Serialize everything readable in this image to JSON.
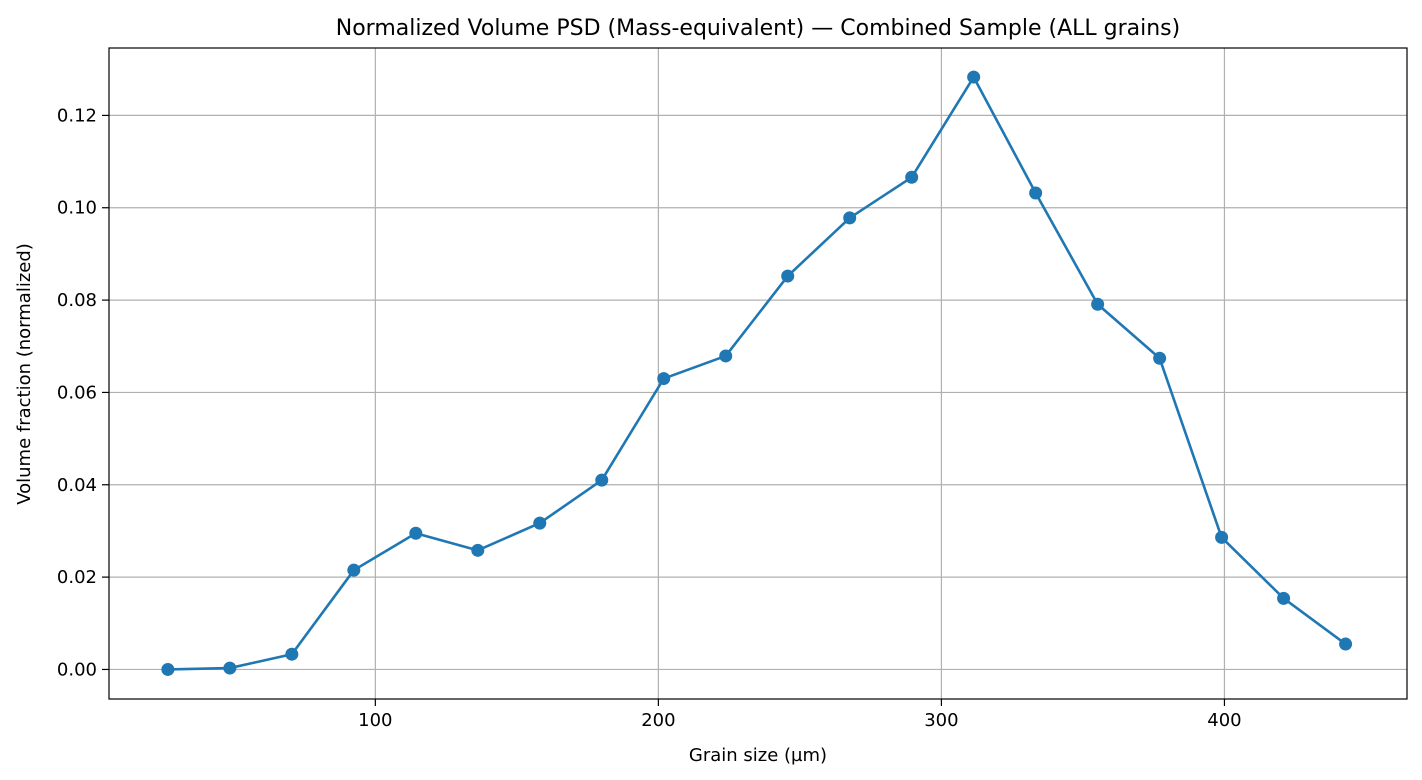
{
  "chart_data": {
    "type": "line",
    "title": "Normalized Volume PSD (Mass-equivalent) — Combined Sample (ALL grains)",
    "xlabel": "Grain size (µm)",
    "ylabel": "Volume fraction (normalized)",
    "xlim": [
      5.9,
      464.5
    ],
    "ylim": [
      -0.0064,
      0.1346
    ],
    "xticks": [
      100,
      200,
      300,
      400
    ],
    "xtick_labels": [
      "100",
      "200",
      "300",
      "400"
    ],
    "yticks": [
      0.0,
      0.02,
      0.04,
      0.06,
      0.08,
      0.1,
      0.12
    ],
    "ytick_labels": [
      "0.00",
      "0.02",
      "0.04",
      "0.06",
      "0.08",
      "0.10",
      "0.12"
    ],
    "grid": true,
    "legend": "none",
    "marker": "circle",
    "color": "#1f77b4",
    "series": [
      {
        "x": [
          26.7,
          48.6,
          70.5,
          92.4,
          114.3,
          136.2,
          158.1,
          180.0,
          201.9,
          223.8,
          245.7,
          267.6,
          289.5,
          311.4,
          333.3,
          355.2,
          377.1,
          399.0,
          420.9,
          442.8
        ],
        "values": [
          0.0,
          0.0003,
          0.0033,
          0.0215,
          0.0295,
          0.0258,
          0.0317,
          0.041,
          0.063,
          0.0679,
          0.0852,
          0.0978,
          0.1066,
          0.1283,
          0.1032,
          0.0791,
          0.0674,
          0.0286,
          0.0154,
          0.0055
        ]
      }
    ]
  }
}
